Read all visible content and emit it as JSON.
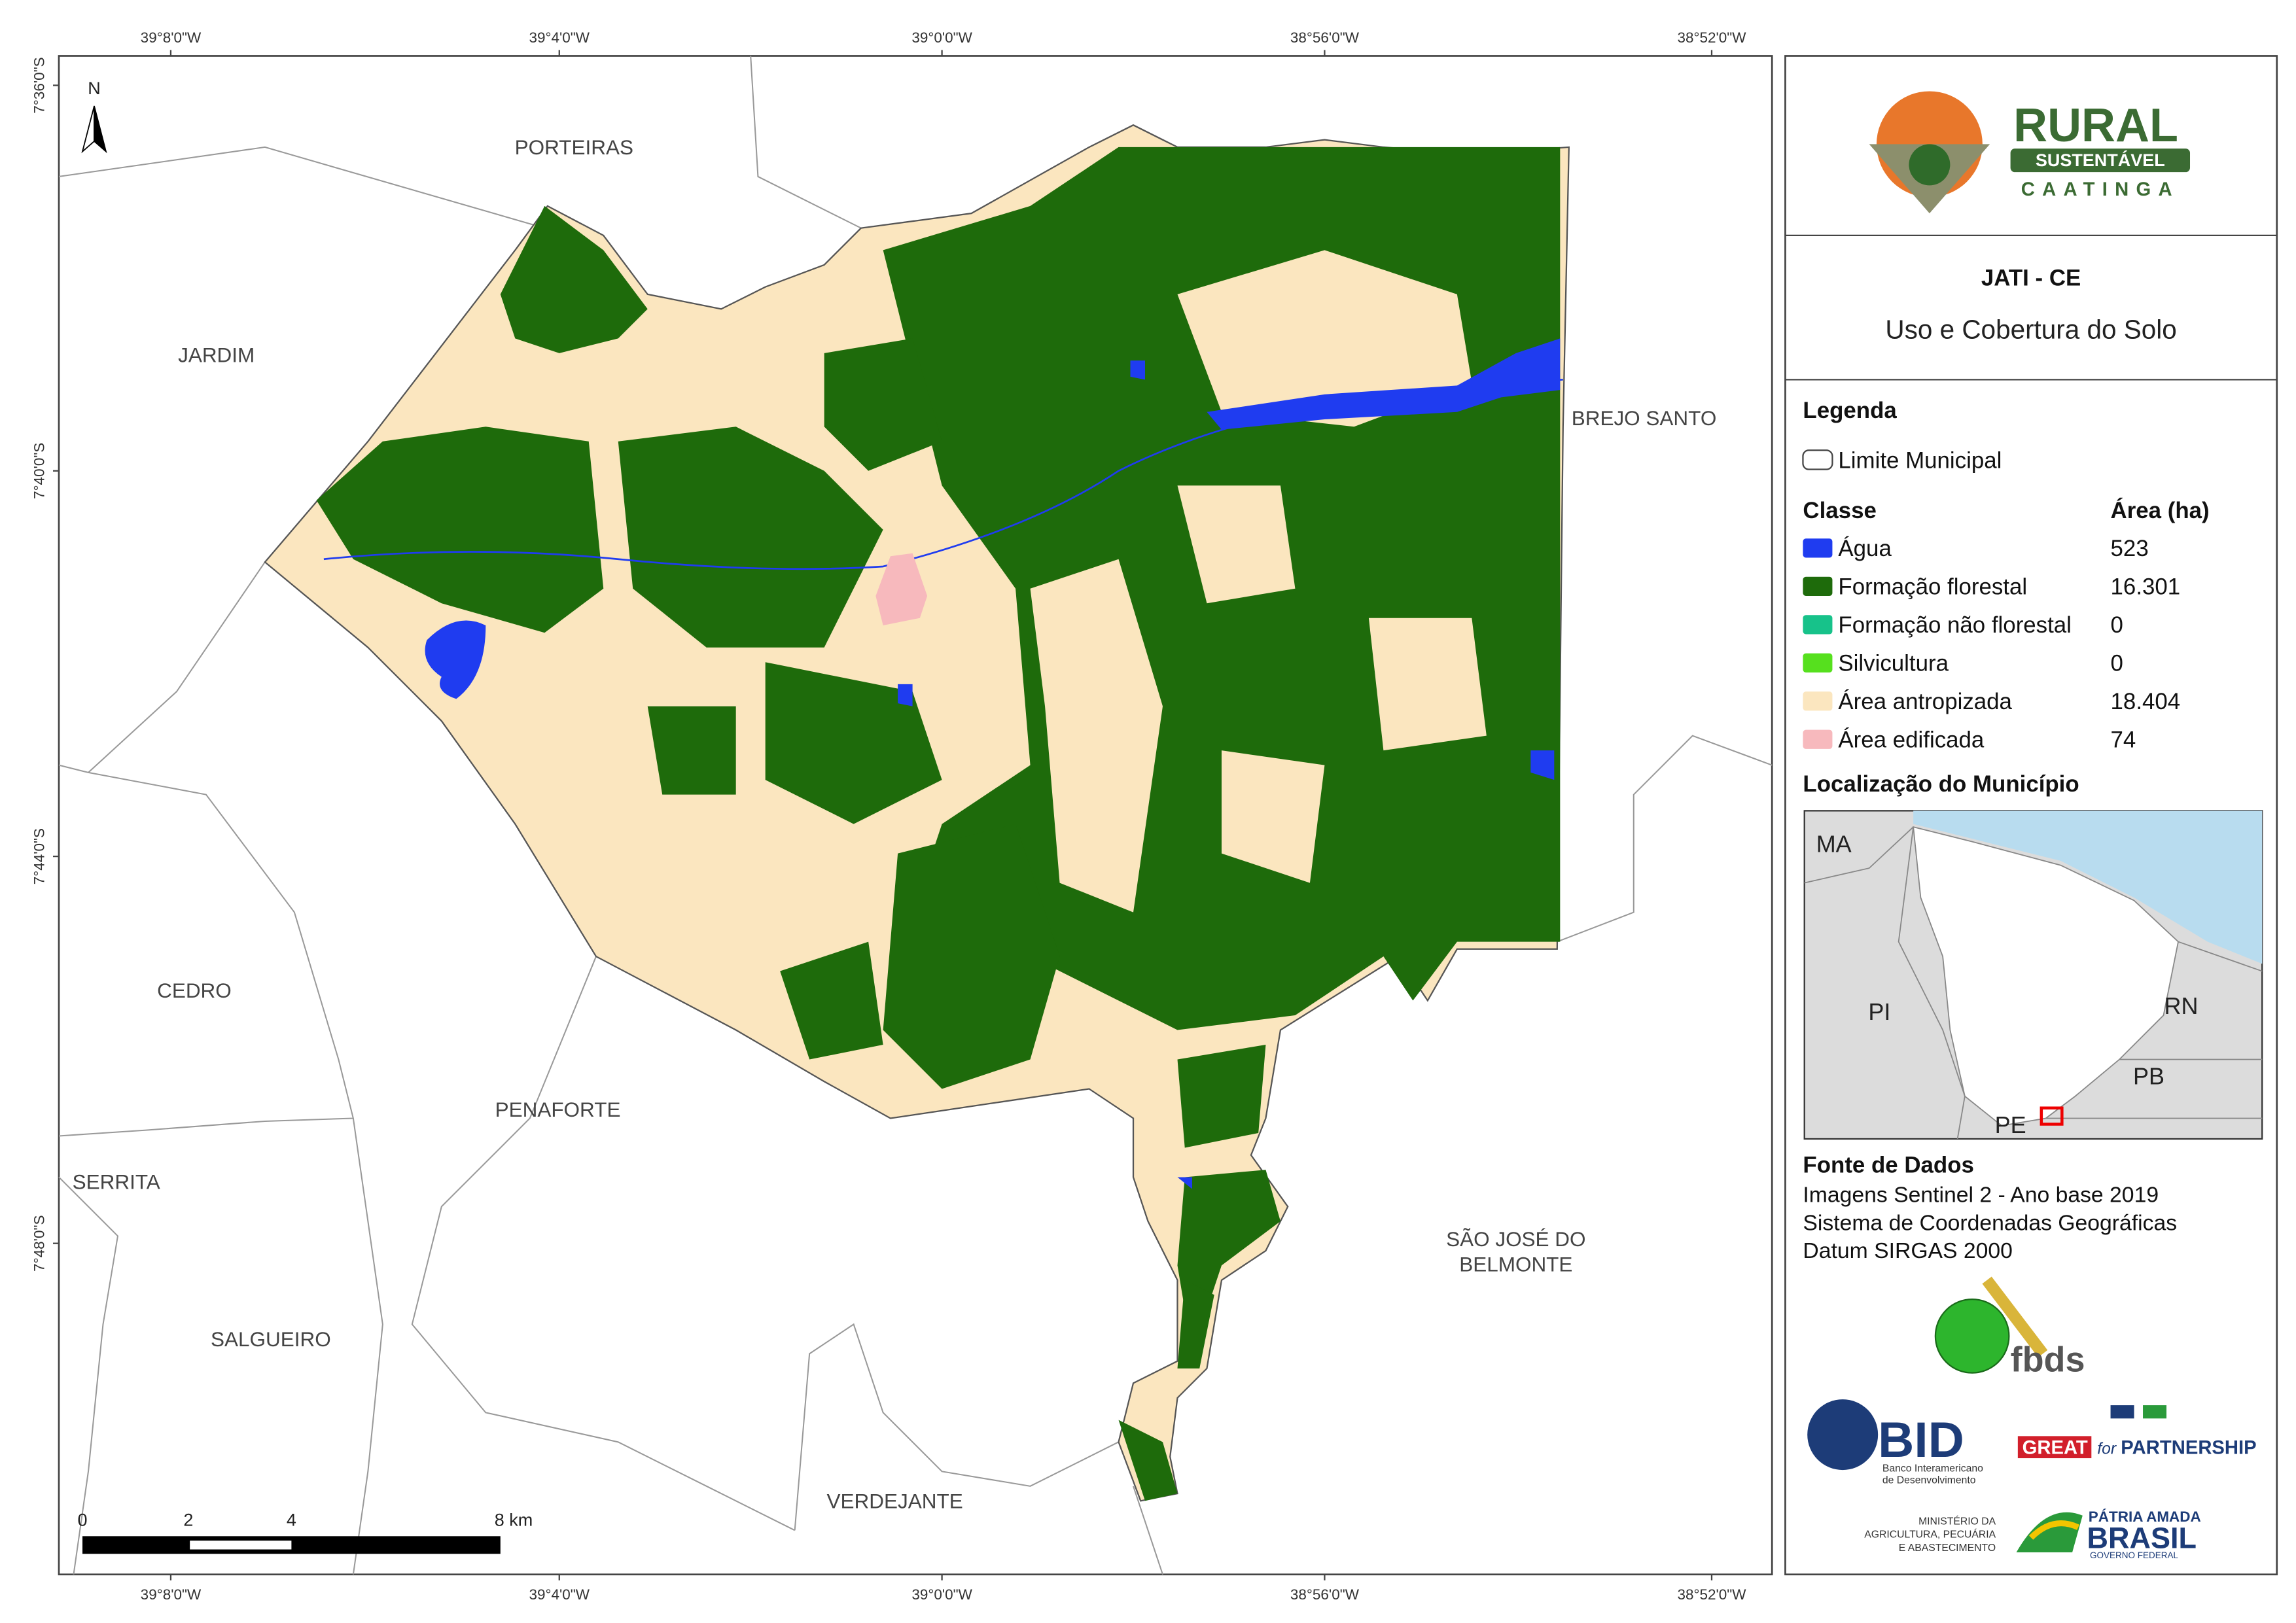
{
  "map": {
    "top_coords": [
      "39°8'0\"W",
      "39°4'0\"W",
      "39°0'0\"W",
      "38°56'0\"W",
      "38°52'0\"W"
    ],
    "bottom_coords": [
      "39°8'0\"W",
      "39°4'0\"W",
      "39°0'0\"W",
      "38°56'0\"W",
      "38°52'0\"W"
    ],
    "left_coords": [
      "7°36'0\"S",
      "7°40'0\"S",
      "7°44'0\"S",
      "7°48'0\"S"
    ],
    "north": "N",
    "places": [
      "PORTEIRAS",
      "JARDIM",
      "BREJO SANTO",
      "CEDRO",
      "PENAFORTE",
      "SERRITA",
      "SALGUEIRO",
      "VERDEJANTE"
    ],
    "place_two_line": [
      "SÃO JOSÉ DO",
      "BELMONTE"
    ],
    "scale_labels": [
      "0",
      "2",
      "4",
      "8 km"
    ]
  },
  "legend": {
    "logo": {
      "name": "RURAL",
      "band": "SUSTENTÁVEL",
      "sub": "CAATINGA"
    },
    "title": "JATI - CE",
    "subtitle": "Uso e Cobertura do Solo",
    "heading": "Legenda",
    "boundary": "Limite Municipal",
    "class_header": "Classe",
    "area_header": "Área (ha)",
    "classes": [
      {
        "name": "Água",
        "area": "523",
        "color": "#1f3cf0"
      },
      {
        "name": "Formação florestal",
        "area": "16.301",
        "color": "#1e6b0b"
      },
      {
        "name": "Formação não florestal",
        "area": "0",
        "color": "#17c28a"
      },
      {
        "name": "Silvicultura",
        "area": "0",
        "color": "#56e01e"
      },
      {
        "name": "Área antropizada",
        "area": "18.404",
        "color": "#fbe6bf"
      },
      {
        "name": "Área edificada",
        "area": "74",
        "color": "#f7b9bd"
      }
    ],
    "location_heading": "Localização do Município",
    "states": [
      "MA",
      "PI",
      "RN",
      "PB",
      "PE"
    ],
    "source_heading": "Fonte de Dados",
    "sources": [
      "Imagens Sentinel 2 - Ano base 2019",
      "Sistema de Coordenadas Geográficas",
      "Datum SIRGAS 2000"
    ],
    "partners": {
      "fbds": "fbds",
      "bid": "BID",
      "bid_sub": [
        "Banco Interamericano",
        "de Desenvolvimento"
      ],
      "great": "GREAT",
      "for": "for",
      "partnership": "PARTNERSHIP",
      "ministry": [
        "MINISTÉRIO DA",
        "AGRICULTURA, PECUÁRIA",
        "E ABASTECIMENTO"
      ],
      "brasil": [
        "PÁTRIA AMADA",
        "BRASIL",
        "GOVERNO FEDERAL"
      ]
    }
  }
}
